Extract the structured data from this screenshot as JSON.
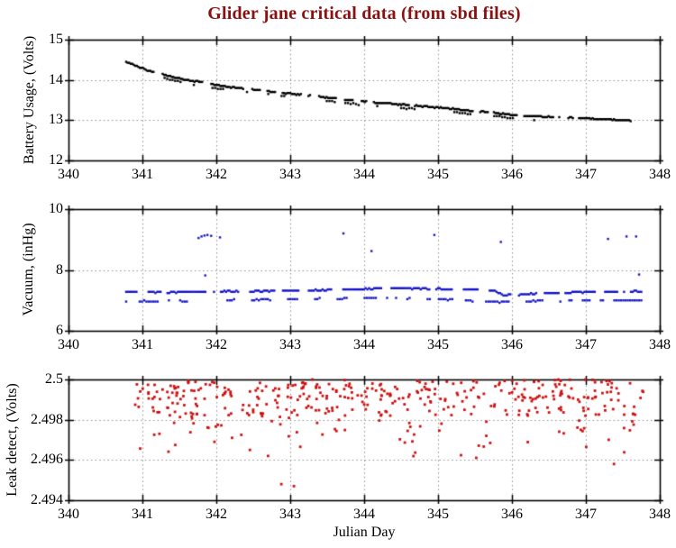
{
  "figure": {
    "title": "Glider jane critical data (from sbd files)",
    "title_color": "#8B1010",
    "xlabel": "Julian Day",
    "background": "#FFFFFF",
    "axis_color": "#000000",
    "grid_color": "#888888"
  },
  "seed": 1207,
  "xaxis": {
    "lim": [
      340,
      348
    ],
    "tick_values": [
      340,
      341,
      342,
      343,
      344,
      345,
      346,
      347,
      348
    ],
    "tick_labels": [
      "340",
      "341",
      "342",
      "343",
      "344",
      "345",
      "346",
      "347",
      "348"
    ],
    "grid_values": [
      341,
      342,
      343,
      344,
      345,
      346,
      347
    ]
  },
  "chart_data": [
    {
      "type": "scatter",
      "name": "battery-usage",
      "ylabel": "Battery Usage, (Volts)",
      "color": "#000000",
      "ylim": [
        12,
        15
      ],
      "ytick_values": [
        12,
        13,
        14,
        15
      ],
      "ytick_labels": [
        "12",
        "13",
        "14",
        "15"
      ],
      "grid_y": [
        13,
        14
      ],
      "x_range": [
        340.78,
        347.75
      ],
      "point_size": 2.4,
      "series": [
        {
          "name": "battery-main",
          "n": 340,
          "jitter": 0.012,
          "quant": 0.025,
          "gap_p": 0.05,
          "gap_len": 3,
          "anchors": [
            [
              340.78,
              14.45
            ],
            [
              340.85,
              14.4
            ],
            [
              341.0,
              14.28
            ],
            [
              341.2,
              14.17
            ],
            [
              341.4,
              14.08
            ],
            [
              341.6,
              14.0
            ],
            [
              341.8,
              13.94
            ],
            [
              342.0,
              13.87
            ],
            [
              342.3,
              13.8
            ],
            [
              342.6,
              13.74
            ],
            [
              343.0,
              13.66
            ],
            [
              343.5,
              13.56
            ],
            [
              344.0,
              13.46
            ],
            [
              344.5,
              13.39
            ],
            [
              345.0,
              13.31
            ],
            [
              345.5,
              13.23
            ],
            [
              345.8,
              13.17
            ],
            [
              346.0,
              13.13
            ],
            [
              346.5,
              13.08
            ],
            [
              347.0,
              13.05
            ],
            [
              347.4,
              13.01
            ],
            [
              347.6,
              12.99
            ],
            [
              347.75,
              12.94
            ]
          ]
        },
        {
          "name": "battery-secondary-trace",
          "n": 140,
          "jitter": 0.012,
          "quant": 0.025,
          "gap_p": 0.2,
          "gap_len": 6,
          "x_range": [
            341.3,
            346.3
          ],
          "anchors": [
            [
              341.3,
              14.04
            ],
            [
              341.6,
              13.92
            ],
            [
              342.0,
              13.79
            ],
            [
              342.5,
              13.69
            ],
            [
              343.0,
              13.58
            ],
            [
              343.5,
              13.48
            ],
            [
              344.0,
              13.38
            ],
            [
              344.5,
              13.31
            ],
            [
              345.0,
              13.23
            ],
            [
              345.5,
              13.15
            ],
            [
              346.0,
              13.05
            ],
            [
              346.3,
              13.0
            ]
          ]
        }
      ],
      "outliers": []
    },
    {
      "type": "scatter",
      "name": "vacuum",
      "ylabel": "Vacuum, (inHg)",
      "color": "#1414C8",
      "ylim": [
        6,
        10
      ],
      "ytick_values": [
        6,
        8,
        10
      ],
      "ytick_labels": [
        "6",
        "8",
        "10"
      ],
      "grid_y": [
        8
      ],
      "x_range": [
        340.78,
        347.75
      ],
      "point_size": 2.4,
      "series": [
        {
          "name": "vacuum-upper-band",
          "n": 300,
          "jitter": 0.015,
          "quant": 0.04,
          "gap_p": 0.08,
          "gap_len": 4,
          "anchors": [
            [
              340.78,
              7.28
            ],
            [
              341.3,
              7.26
            ],
            [
              342.0,
              7.3
            ],
            [
              342.6,
              7.3
            ],
            [
              343.2,
              7.33
            ],
            [
              343.8,
              7.36
            ],
            [
              344.3,
              7.4
            ],
            [
              344.9,
              7.38
            ],
            [
              345.4,
              7.36
            ],
            [
              345.75,
              7.32
            ],
            [
              345.9,
              7.17
            ],
            [
              346.2,
              7.21
            ],
            [
              346.7,
              7.25
            ],
            [
              347.2,
              7.28
            ],
            [
              347.75,
              7.3
            ]
          ]
        },
        {
          "name": "vacuum-lower-band",
          "n": 230,
          "jitter": 0.02,
          "quant": 0.04,
          "gap_p": 0.15,
          "gap_len": 5,
          "anchors": [
            [
              340.78,
              6.97
            ],
            [
              341.5,
              6.98
            ],
            [
              342.2,
              7.01
            ],
            [
              343.0,
              7.04
            ],
            [
              343.6,
              7.06
            ],
            [
              344.2,
              7.08
            ],
            [
              344.8,
              7.06
            ],
            [
              345.3,
              7.01
            ],
            [
              345.8,
              6.94
            ],
            [
              346.3,
              6.97
            ],
            [
              347.0,
              7.0
            ],
            [
              347.75,
              7.0
            ]
          ]
        }
      ],
      "outliers": [
        [
          341.76,
          9.05
        ],
        [
          341.8,
          9.1
        ],
        [
          341.84,
          9.13
        ],
        [
          341.88,
          9.15
        ],
        [
          341.93,
          9.12
        ],
        [
          342.05,
          9.07
        ],
        [
          341.85,
          7.82
        ],
        [
          343.72,
          9.2
        ],
        [
          344.1,
          8.62
        ],
        [
          344.95,
          9.15
        ],
        [
          345.85,
          8.92
        ],
        [
          347.3,
          9.02
        ],
        [
          347.55,
          9.1
        ],
        [
          347.68,
          9.1
        ],
        [
          347.72,
          7.85
        ]
      ]
    },
    {
      "type": "scatter",
      "name": "leak-detect",
      "ylabel": "Leak detect, (Volts)",
      "color": "#CC1111",
      "ylim": [
        2.494,
        2.5
      ],
      "ytick_values": [
        2.494,
        2.496,
        2.498,
        2.5
      ],
      "ytick_labels": [
        "2.494",
        "2.496",
        "2.498",
        "2.5"
      ],
      "grid_y": [
        2.496,
        2.498
      ],
      "x_range": [
        340.78,
        347.78
      ],
      "point_size": 2.8,
      "series": [
        {
          "name": "leak-scatter",
          "mode": "bands",
          "n": 430,
          "bands": [
            {
              "p": 0.5,
              "lo": 2.499,
              "hi": 2.5
            },
            {
              "p": 0.3,
              "lo": 2.4982,
              "hi": 2.4992
            },
            {
              "p": 0.14,
              "lo": 2.4972,
              "hi": 2.4985
            },
            {
              "p": 0.06,
              "lo": 2.496,
              "hi": 2.4976
            }
          ]
        }
      ],
      "outliers": [
        [
          342.7,
          2.4962
        ],
        [
          342.88,
          2.4948
        ],
        [
          343.05,
          2.4947
        ],
        [
          347.38,
          2.4958
        ]
      ]
    }
  ]
}
